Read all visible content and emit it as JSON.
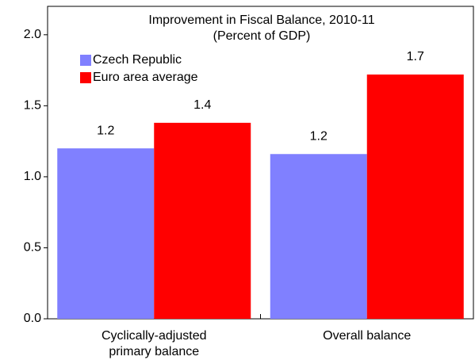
{
  "chart_data": {
    "type": "bar",
    "title": "Improvement in Fiscal Balance, 2010-11",
    "subtitle": "(Percent of GDP)",
    "categories": [
      "Cyclically-adjusted primary balance",
      "Overall balance"
    ],
    "series": [
      {
        "name": "Czech Republic",
        "color": "#8080ff",
        "values": [
          1.2,
          1.16
        ],
        "value_labels": [
          "1.2",
          "1.2"
        ]
      },
      {
        "name": "Euro area average",
        "color": "#ff0000",
        "values": [
          1.38,
          1.72
        ],
        "value_labels": [
          "1.4",
          "1.7"
        ]
      }
    ],
    "ylim": [
      0,
      2.2
    ],
    "yticks": [
      {
        "value": 0,
        "label": "0.0"
      },
      0.5,
      {
        "value": 1,
        "label": "1.0"
      },
      1.5,
      {
        "value": 2,
        "label": "2.0"
      }
    ],
    "legend": "top-left"
  }
}
